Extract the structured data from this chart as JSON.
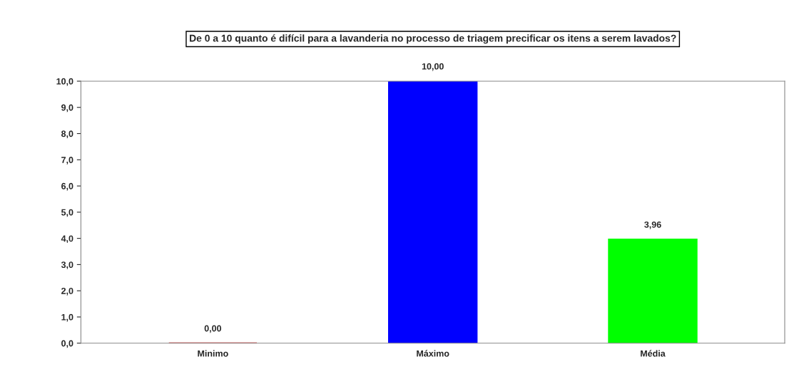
{
  "chart_data": {
    "type": "bar",
    "title": "De 0 a 10 quanto é difícil para a lavanderia no processo de triagem precificar os itens a serem lavados?",
    "categories": [
      "Minimo",
      "Máximo",
      "Média"
    ],
    "values": [
      0,
      10,
      3.96
    ],
    "colors": [
      "#c00000",
      "#0000ff",
      "#00ff00"
    ],
    "value_labels": [
      "0,00",
      "10,00",
      "3,96"
    ],
    "ylim": [
      0,
      10
    ],
    "yticks": [
      {
        "value": 0,
        "label": "0,0"
      },
      {
        "value": 1,
        "label": "1,0"
      },
      {
        "value": 2,
        "label": "2,0"
      },
      {
        "value": 3,
        "label": "3,0"
      },
      {
        "value": 4,
        "label": "4,0"
      },
      {
        "value": 5,
        "label": "5,0"
      },
      {
        "value": 6,
        "label": "6,0"
      },
      {
        "value": 7,
        "label": "7,0"
      },
      {
        "value": 8,
        "label": "8,0"
      },
      {
        "value": 9,
        "label": "9,0"
      },
      {
        "value": 10,
        "label": "10,0"
      }
    ],
    "grid": false
  }
}
